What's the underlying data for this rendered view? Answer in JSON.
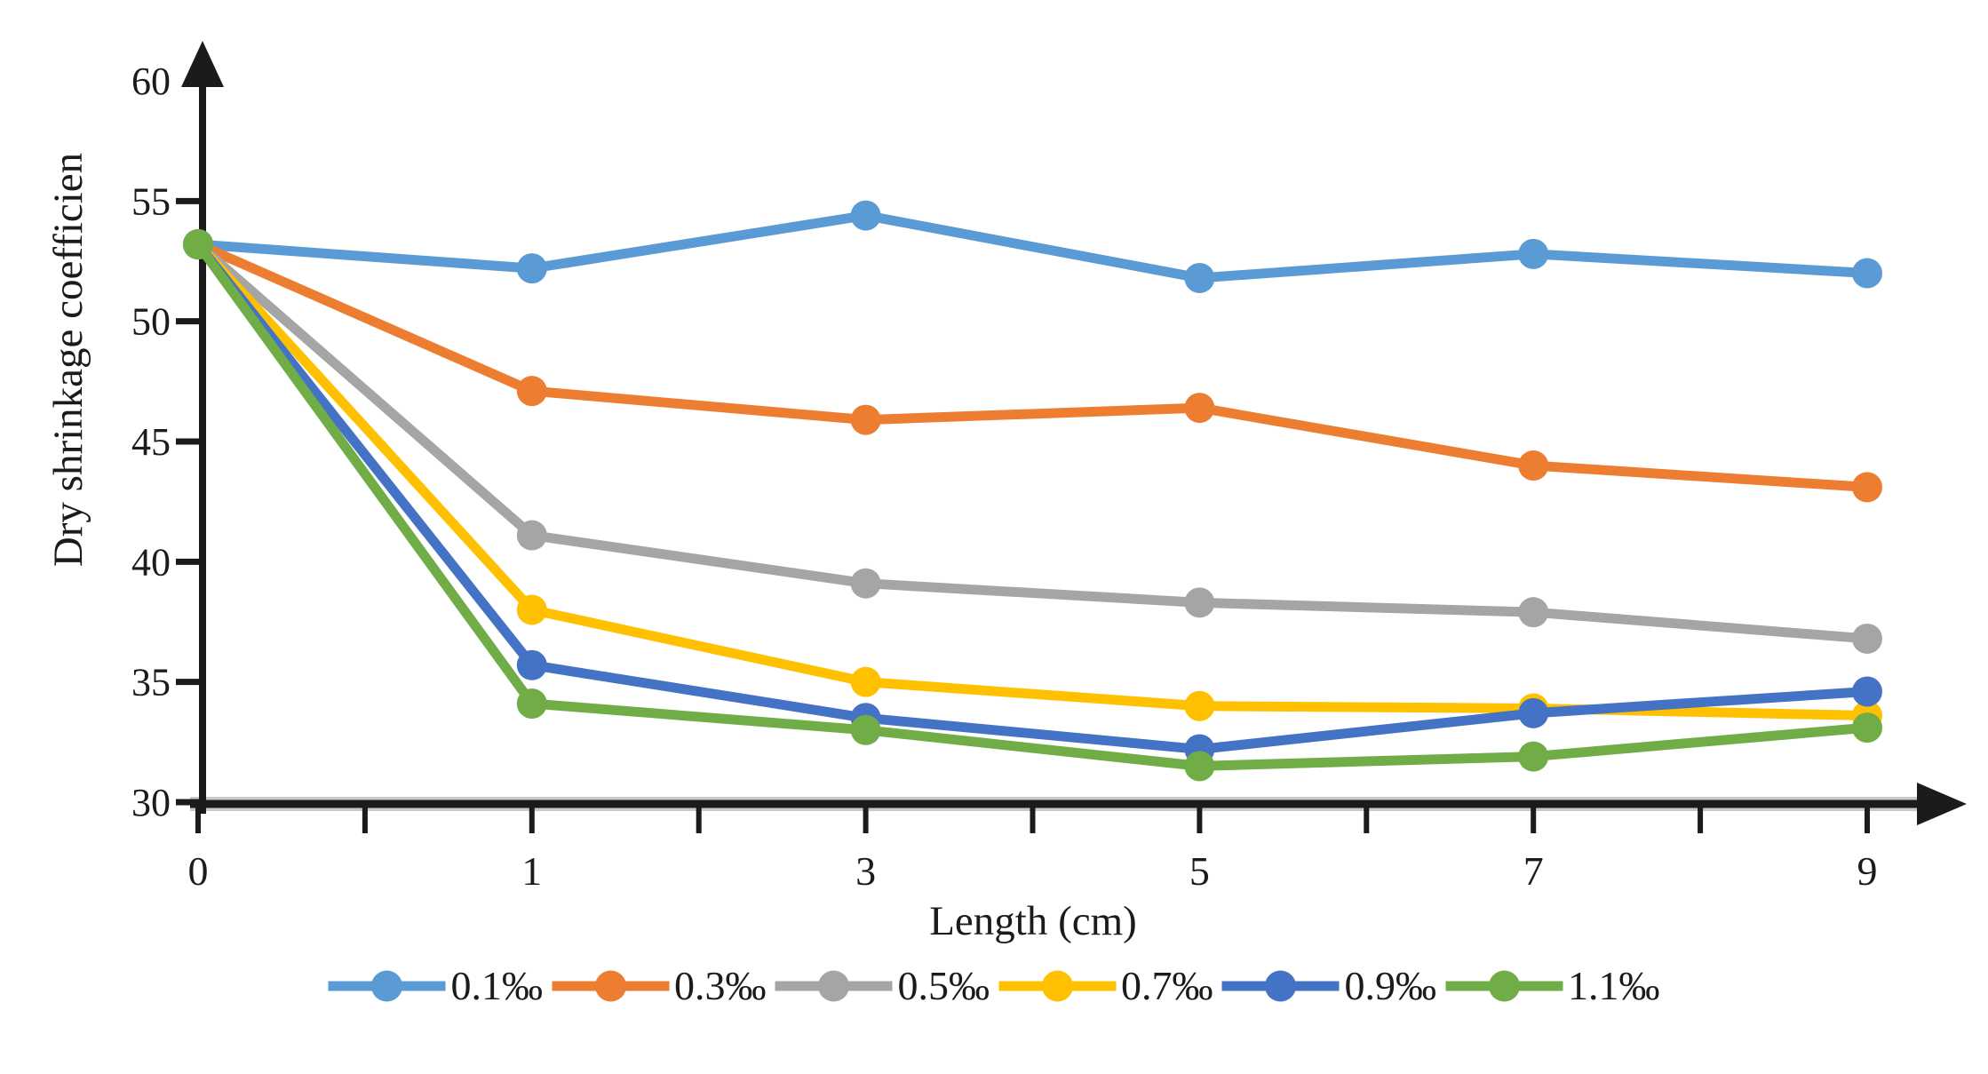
{
  "chart_data": {
    "type": "line",
    "categories": [
      "0",
      "1",
      "3",
      "5",
      "7",
      "9"
    ],
    "series": [
      {
        "name": "0.1‰",
        "color": "#5B9BD5",
        "values": [
          53.2,
          52.2,
          54.4,
          51.8,
          52.8,
          52.0
        ]
      },
      {
        "name": "0.3‰",
        "color": "#ED7D31",
        "values": [
          53.2,
          47.1,
          45.9,
          46.4,
          44.0,
          43.1
        ]
      },
      {
        "name": "0.5‰",
        "color": "#A5A5A5",
        "values": [
          53.2,
          41.1,
          39.1,
          38.3,
          37.9,
          36.8
        ]
      },
      {
        "name": "0.7‰",
        "color": "#FFC000",
        "values": [
          53.2,
          38.0,
          35.0,
          34.0,
          33.9,
          33.6
        ]
      },
      {
        "name": "0.9‰",
        "color": "#4472C4",
        "values": [
          53.2,
          35.7,
          33.5,
          32.2,
          33.7,
          34.6
        ]
      },
      {
        "name": "1.1‰",
        "color": "#70AD47",
        "values": [
          53.2,
          34.1,
          33.0,
          31.5,
          31.9,
          33.1
        ]
      }
    ],
    "xlabel": "Length (cm)",
    "ylabel": "Dry shrinkage coefficien",
    "ylim": [
      30,
      60
    ],
    "yticks": [
      30,
      35,
      40,
      45,
      50,
      55,
      60
    ],
    "grid": false,
    "legend_position": "bottom",
    "axis_color": "#1b1b1b",
    "axis_shadow_color": "#c8c8c8"
  }
}
